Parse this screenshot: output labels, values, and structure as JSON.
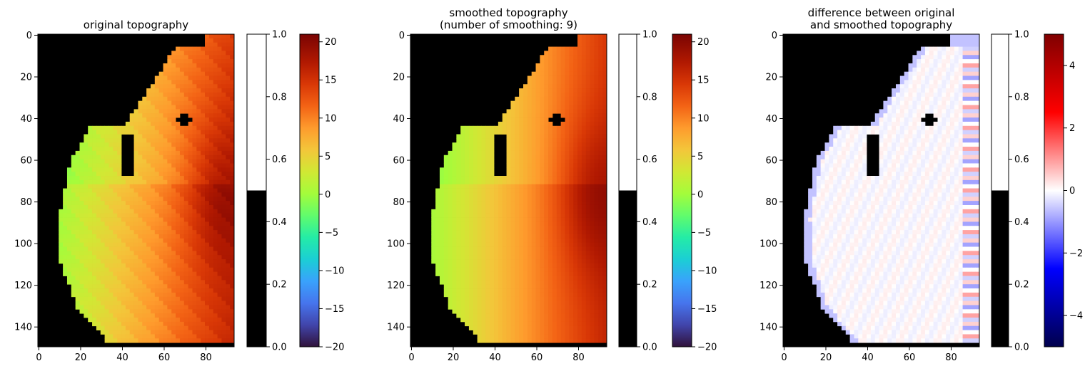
{
  "chart_data": [
    {
      "type": "heatmap",
      "title": "original topography",
      "xticks": [
        0,
        20,
        40,
        60,
        80
      ],
      "yticks": [
        0,
        20,
        40,
        60,
        80,
        100,
        120,
        140
      ],
      "xlim": [
        -0.5,
        93.5
      ],
      "ylim": [
        149.5,
        -0.5
      ],
      "field": "original",
      "colorbars": [
        {
          "kind": "mask",
          "range": [
            0,
            1
          ],
          "ticks": [
            "0.0",
            "0.2",
            "0.4",
            "0.6",
            "0.8",
            "1.0"
          ]
        },
        {
          "kind": "turbo",
          "range": [
            -20,
            21
          ],
          "ticks": [
            "20",
            "15",
            "10",
            "5",
            "0",
            "−5",
            "−10",
            "−15",
            "−20"
          ]
        }
      ]
    },
    {
      "type": "heatmap",
      "title": "smoothed topography\n(number of smoothing: 9)",
      "title_lines": [
        "smoothed topography",
        "(number of smoothing: 9)"
      ],
      "xticks": [
        0,
        20,
        40,
        60,
        80
      ],
      "yticks": [
        0,
        20,
        40,
        60,
        80,
        100,
        120,
        140
      ],
      "xlim": [
        -0.5,
        93.5
      ],
      "ylim": [
        149.5,
        -0.5
      ],
      "field": "smoothed",
      "colorbars": [
        {
          "kind": "mask",
          "range": [
            0,
            1
          ],
          "ticks": [
            "0.0",
            "0.2",
            "0.4",
            "0.6",
            "0.8",
            "1.0"
          ]
        },
        {
          "kind": "turbo",
          "range": [
            -20,
            21
          ],
          "ticks": [
            "20",
            "15",
            "10",
            "5",
            "0",
            "−5",
            "−10",
            "−15",
            "−20"
          ]
        }
      ]
    },
    {
      "type": "heatmap",
      "title": "difference between original\n and smoothed topography",
      "title_lines": [
        "difference between original",
        "and smoothed topography"
      ],
      "xticks": [
        0,
        20,
        40,
        60,
        80
      ],
      "yticks": [
        0,
        20,
        40,
        60,
        80,
        100,
        120,
        140
      ],
      "xlim": [
        -0.5,
        93.5
      ],
      "ylim": [
        149.5,
        -0.5
      ],
      "field": "difference",
      "colorbars": [
        {
          "kind": "mask",
          "range": [
            0,
            1
          ],
          "ticks": [
            "0.0",
            "0.2",
            "0.4",
            "0.6",
            "0.8",
            "1.0"
          ]
        },
        {
          "kind": "seismic",
          "range": [
            -5,
            5
          ],
          "ticks": [
            "4",
            "2",
            "0",
            "−2",
            "−4"
          ]
        }
      ]
    }
  ],
  "colors": {
    "mask_land": "#000000",
    "mask_sea": "#ffffff"
  }
}
